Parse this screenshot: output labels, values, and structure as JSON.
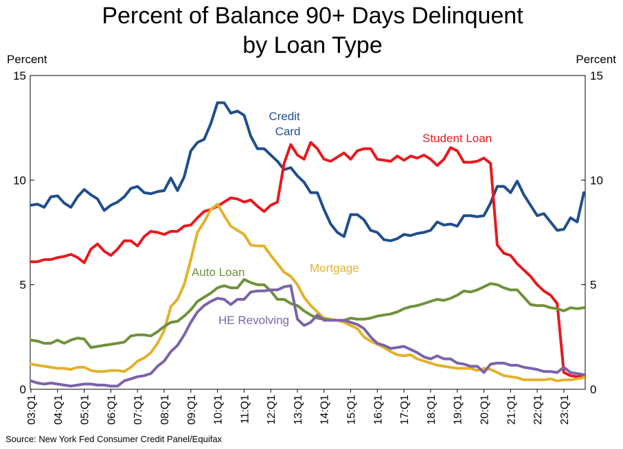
{
  "chart_data": {
    "type": "line",
    "title_line1": "Percent of Balance 90+ Days Delinquent",
    "title_line2": "by Loan Type",
    "ylabel_left": "Percent",
    "ylabel_right": "Percent",
    "ylim": [
      0,
      15
    ],
    "yticks": [
      "0",
      "5",
      "10",
      "15"
    ],
    "xticks": [
      "03:Q1",
      "04:Q1",
      "05:Q1",
      "06:Q1",
      "07:Q1",
      "08:Q1",
      "09:Q1",
      "10:Q1",
      "11:Q1",
      "12:Q1",
      "13:Q1",
      "14:Q1",
      "15:Q1",
      "16:Q1",
      "17:Q1",
      "18:Q1",
      "19:Q1",
      "20:Q1",
      "21:Q1",
      "22:Q1",
      "23:Q1"
    ],
    "source": "Source: New York Fed Consumer Credit Panel/Equifax",
    "series": [
      {
        "name": "Credit Card",
        "label_line1": "Credit",
        "label_line2": "Card",
        "color": "#1f4e8c",
        "values": [
          8.8,
          8.85,
          8.7,
          9.2,
          9.25,
          8.9,
          8.7,
          9.2,
          9.55,
          9.3,
          9.1,
          8.55,
          8.8,
          8.95,
          9.2,
          9.6,
          9.7,
          9.4,
          9.35,
          9.45,
          9.5,
          10.1,
          9.5,
          10.15,
          11.4,
          11.8,
          11.95,
          12.7,
          13.7,
          13.7,
          13.2,
          13.3,
          13.1,
          12.1,
          11.5,
          11.5,
          11.2,
          10.9,
          10.5,
          10.6,
          10.2,
          9.9,
          9.4,
          9.4,
          8.6,
          7.9,
          7.5,
          7.3,
          8.35,
          8.35,
          8.1,
          7.6,
          7.5,
          7.15,
          7.1,
          7.2,
          7.4,
          7.35,
          7.45,
          7.5,
          7.6,
          8.0,
          7.85,
          7.9,
          7.8,
          8.3,
          8.3,
          8.25,
          8.3,
          8.9,
          9.7,
          9.7,
          9.4,
          9.95,
          9.3,
          8.8,
          8.3,
          8.4,
          8.0,
          7.6,
          7.65,
          8.2,
          8.0,
          9.4
        ]
      },
      {
        "name": "Student Loan",
        "label": "Student Loan",
        "color": "#e8191e",
        "values": [
          6.1,
          6.1,
          6.2,
          6.2,
          6.3,
          6.35,
          6.45,
          6.3,
          6.05,
          6.7,
          6.95,
          6.6,
          6.4,
          6.7,
          7.1,
          7.1,
          6.85,
          7.3,
          7.55,
          7.5,
          7.4,
          7.55,
          7.55,
          7.8,
          7.85,
          8.2,
          8.5,
          8.6,
          8.75,
          8.95,
          9.15,
          9.1,
          8.95,
          9.05,
          8.75,
          8.5,
          8.8,
          8.95,
          10.8,
          11.7,
          11.2,
          11.0,
          11.8,
          11.5,
          11.0,
          10.9,
          11.1,
          11.3,
          11.0,
          11.4,
          11.5,
          11.5,
          11.0,
          10.95,
          10.9,
          11.15,
          10.95,
          11.15,
          11.05,
          11.2,
          11.0,
          10.7,
          11.0,
          11.55,
          11.4,
          10.85,
          10.85,
          10.9,
          11.05,
          10.8,
          6.9,
          6.5,
          6.4,
          6.0,
          5.7,
          5.4,
          5.0,
          4.7,
          4.5,
          4.1,
          0.8,
          0.65,
          0.6,
          0.7
        ]
      },
      {
        "name": "Mortgage",
        "label": "Mortgage",
        "color": "#e3b22b",
        "values": [
          1.2,
          1.15,
          1.1,
          1.05,
          1.0,
          1.0,
          0.95,
          1.05,
          1.05,
          0.9,
          0.85,
          0.85,
          0.9,
          0.9,
          0.85,
          1.05,
          1.35,
          1.5,
          1.75,
          2.2,
          2.8,
          3.95,
          4.3,
          5.0,
          6.2,
          7.5,
          8.0,
          8.6,
          8.85,
          8.3,
          7.8,
          7.6,
          7.4,
          6.9,
          6.85,
          6.85,
          6.4,
          6.0,
          5.6,
          5.4,
          5.0,
          4.4,
          4.0,
          3.7,
          3.4,
          3.35,
          3.3,
          3.2,
          3.05,
          2.9,
          2.5,
          2.3,
          2.15,
          2.0,
          1.8,
          1.65,
          1.6,
          1.65,
          1.45,
          1.35,
          1.25,
          1.15,
          1.1,
          1.05,
          1.0,
          1.0,
          1.0,
          0.9,
          1.0,
          0.95,
          0.8,
          0.65,
          0.6,
          0.55,
          0.45,
          0.45,
          0.45,
          0.45,
          0.5,
          0.4,
          0.45,
          0.45,
          0.5,
          0.55
        ]
      },
      {
        "name": "Auto Loan",
        "label": "Auto Loan",
        "color": "#70913b",
        "values": [
          2.35,
          2.3,
          2.2,
          2.2,
          2.35,
          2.2,
          2.35,
          2.45,
          2.4,
          2.0,
          2.05,
          2.1,
          2.15,
          2.2,
          2.25,
          2.55,
          2.6,
          2.6,
          2.55,
          2.75,
          3.0,
          3.2,
          3.25,
          3.5,
          3.8,
          4.2,
          4.4,
          4.6,
          4.85,
          4.95,
          4.85,
          4.85,
          5.25,
          5.1,
          5.0,
          5.0,
          4.7,
          4.3,
          4.3,
          4.1,
          4.0,
          3.75,
          3.55,
          3.4,
          3.35,
          3.3,
          3.3,
          3.3,
          3.4,
          3.35,
          3.35,
          3.4,
          3.5,
          3.55,
          3.6,
          3.7,
          3.85,
          3.95,
          4.0,
          4.1,
          4.2,
          4.3,
          4.25,
          4.35,
          4.5,
          4.7,
          4.65,
          4.75,
          4.9,
          5.05,
          5.0,
          4.85,
          4.75,
          4.75,
          4.4,
          4.05,
          4.0,
          4.0,
          3.9,
          3.85,
          3.75,
          3.9,
          3.85,
          3.9
        ]
      },
      {
        "name": "HE Revolving",
        "label": "HE Revolving",
        "color": "#7b63a9",
        "values": [
          0.4,
          0.3,
          0.25,
          0.3,
          0.25,
          0.2,
          0.15,
          0.2,
          0.25,
          0.25,
          0.2,
          0.2,
          0.15,
          0.15,
          0.4,
          0.5,
          0.6,
          0.65,
          0.75,
          1.1,
          1.35,
          1.8,
          2.1,
          2.6,
          3.2,
          3.7,
          4.0,
          4.2,
          4.35,
          4.3,
          4.05,
          4.3,
          4.3,
          4.65,
          4.7,
          4.7,
          4.75,
          4.75,
          4.9,
          4.95,
          3.35,
          3.05,
          3.2,
          3.55,
          3.3,
          3.3,
          3.3,
          3.3,
          3.2,
          3.1,
          2.9,
          2.5,
          2.2,
          2.1,
          1.95,
          2.0,
          2.05,
          1.9,
          1.75,
          1.55,
          1.45,
          1.6,
          1.45,
          1.45,
          1.25,
          1.2,
          1.1,
          1.1,
          0.8,
          1.2,
          1.25,
          1.25,
          1.15,
          1.15,
          1.05,
          1.0,
          0.95,
          0.85,
          0.85,
          0.8,
          1.05,
          0.8,
          0.75,
          0.7
        ]
      }
    ]
  }
}
